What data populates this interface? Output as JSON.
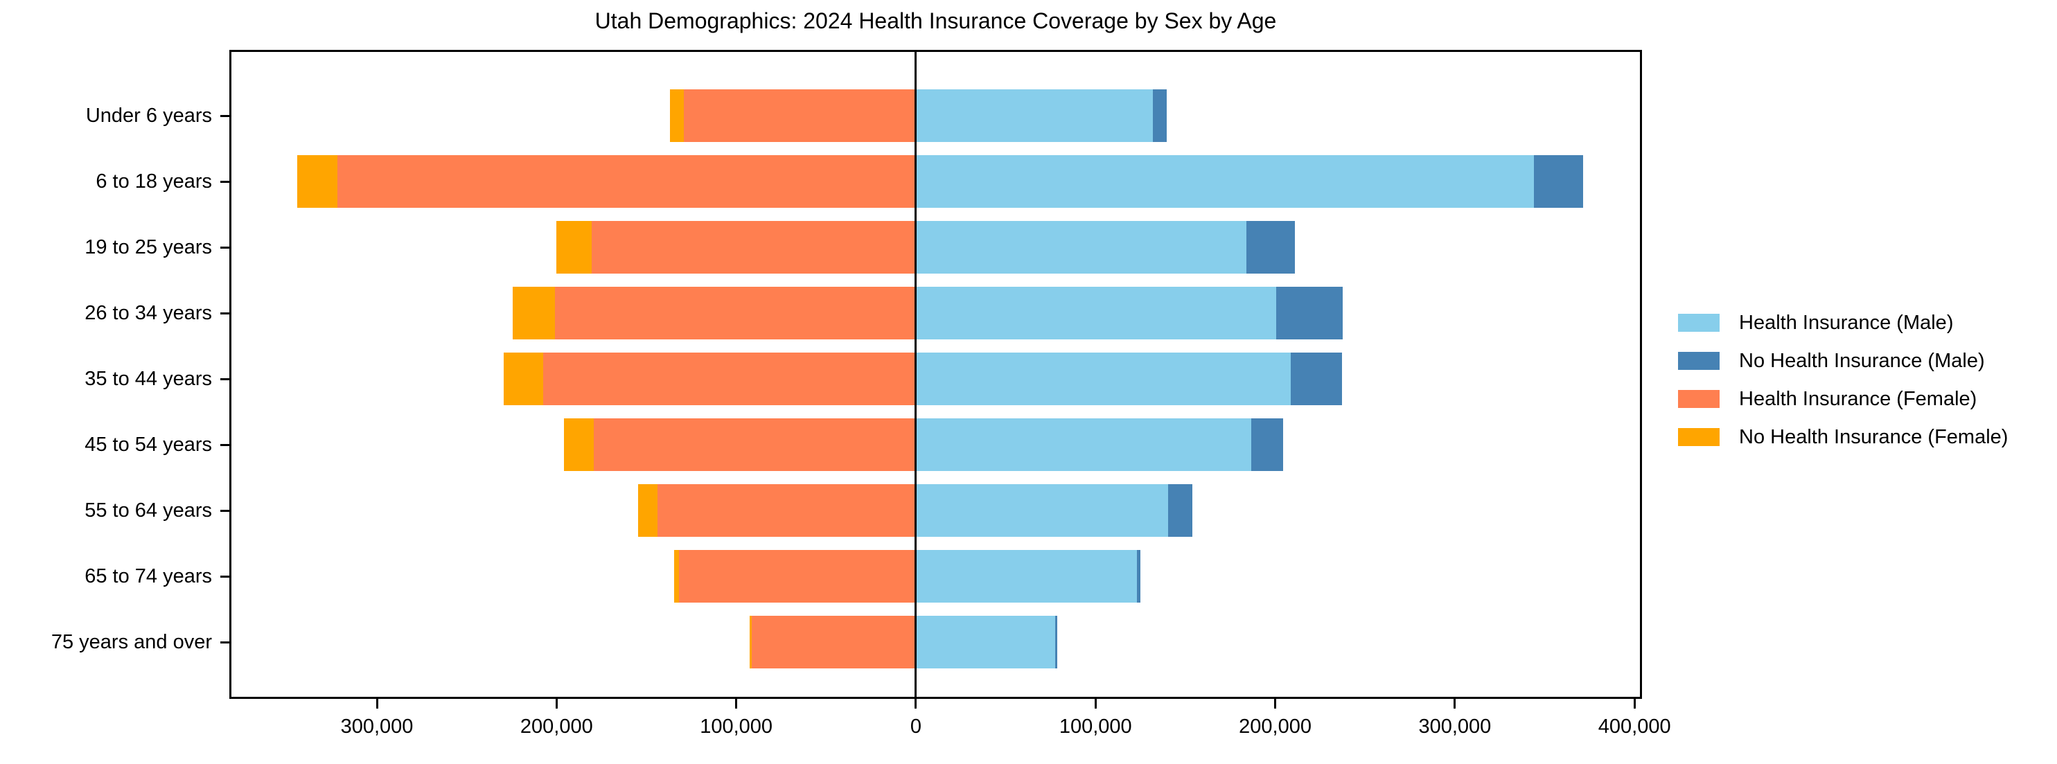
{
  "chart_data": {
    "type": "bar",
    "variant": "population-pyramid-diverging-stacked",
    "title": "Utah Demographics: 2024 Health Insurance Coverage by Sex by Age",
    "categories": [
      "Under 6 years",
      "6 to 18 years",
      "19 to 25 years",
      "26 to 34 years",
      "35 to 44 years",
      "45 to 54 years",
      "55 to 64 years",
      "65 to 74 years",
      "75 years and over"
    ],
    "series": [
      {
        "name": "Health Insurance (Male)",
        "color": "#87CEEB",
        "side": "right",
        "stack_order": 1,
        "values": [
          132000,
          344000,
          184000,
          200500,
          208500,
          186500,
          140500,
          123000,
          77500
        ]
      },
      {
        "name": "No Health Insurance (Male)",
        "color": "#4682B4",
        "side": "right",
        "stack_order": 2,
        "values": [
          7500,
          27500,
          27000,
          37000,
          28500,
          18000,
          13500,
          2000,
          1000
        ]
      },
      {
        "name": "Health Insurance (Female)",
        "color": "#FF7F50",
        "side": "left",
        "stack_order": 1,
        "values": [
          129000,
          322000,
          180500,
          201000,
          207500,
          179500,
          144000,
          132000,
          91500
        ]
      },
      {
        "name": "No Health Insurance (Female)",
        "color": "#FFA500",
        "side": "left",
        "stack_order": 2,
        "values": [
          8000,
          22500,
          19500,
          23500,
          22000,
          16500,
          10500,
          2500,
          1000
        ]
      }
    ],
    "x_ticks": [
      -300000,
      -200000,
      -100000,
      0,
      100000,
      200000,
      300000,
      400000
    ],
    "x_tick_labels": [
      "300,000",
      "200,000",
      "100,000",
      "0",
      "100,000",
      "200,000",
      "300,000",
      "400,000"
    ],
    "xlim": [
      -381000,
      403000
    ],
    "grid": false,
    "zero_line": true,
    "legend_position": "center right",
    "axis_color": "#000000",
    "background_color": "#ffffff"
  }
}
